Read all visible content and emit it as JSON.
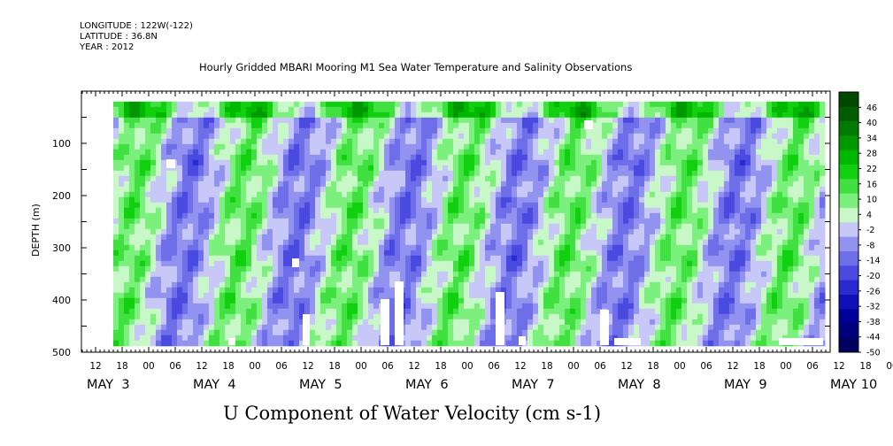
{
  "header": {
    "longitude": "LONGITUDE : 122W(-122)",
    "latitude": "LATITUDE : 36.8N",
    "year": "YEAR : 2012",
    "title": "Hourly Gridded MBARI Mooring M1 Sea Water Temperature and Salinity Observations"
  },
  "chart_data": {
    "type": "heatmap",
    "title": "Hourly Gridded MBARI Mooring M1 Sea Water Temperature and Salinity Observations",
    "xlabel": "U Component of Water Velocity (cm s-1)",
    "ylabel": "DEPTH (m)",
    "ylim": [
      500,
      0
    ],
    "yticks": [
      100,
      200,
      300,
      400,
      500
    ],
    "x_range_hours": "MAY 2 12:00 to MAY 10 06:00",
    "x_hour_ticks": [
      "12",
      "18",
      "00",
      "06",
      "12",
      "18",
      "00",
      "06",
      "12",
      "18",
      "00",
      "06",
      "12",
      "18",
      "00",
      "06",
      "12",
      "18",
      "00",
      "06",
      "12",
      "18",
      "00",
      "06",
      "12",
      "18",
      "00",
      "06",
      "12",
      "18",
      "00",
      "06"
    ],
    "x_date_labels": [
      "MAY  3",
      "MAY  4",
      "MAY  5",
      "MAY  6",
      "MAY  7",
      "MAY  8",
      "MAY  9",
      "MAY 10"
    ],
    "colorbar": {
      "labels": [
        "46",
        "40",
        "34",
        "28",
        "22",
        "16",
        "10",
        "4",
        "-2",
        "-8",
        "-14",
        "-20",
        "-26",
        "-32",
        "-38",
        "-44",
        "-50"
      ],
      "range": [
        -50,
        52
      ],
      "colors": [
        "#000060",
        "#00007a",
        "#000098",
        "#1010b8",
        "#2a2ad0",
        "#4a4ae0",
        "#6e6ee8",
        "#9292f0",
        "#c8c8f8",
        "#c8f8c8",
        "#7cf07c",
        "#40e040",
        "#10d010",
        "#00b800",
        "#009800",
        "#007a00",
        "#005e00",
        "#004800"
      ]
    },
    "data_range_depth_m": [
      20,
      485
    ],
    "pattern": "alternating vertical bands of positive (green) and negative (blue/purple) velocity, tidal/diurnal periodicity; values mostly between -20 and +30"
  }
}
